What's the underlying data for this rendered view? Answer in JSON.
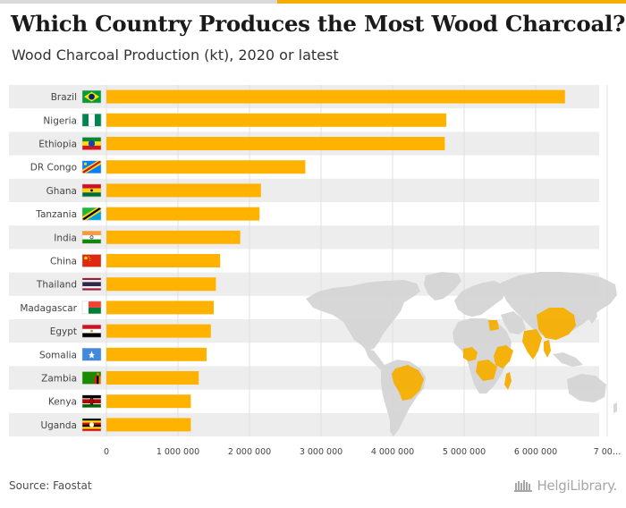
{
  "header": {
    "title": "Which Country Produces the Most Wood Charcoal?",
    "subtitle": "Wood Charcoal Production (kt), 2020 or latest"
  },
  "footer": {
    "source": "Source: Faostat",
    "logo_text": "HelgiLibrary."
  },
  "colors": {
    "bar": "#ffb300",
    "band": "#ededed",
    "map_land": "#d5d5d5",
    "map_highlight": "#f5ad00"
  },
  "chart_data": {
    "type": "bar",
    "orientation": "horizontal",
    "title": "Which Country Produces the Most Wood Charcoal?",
    "subtitle": "Wood Charcoal Production (kt), 2020 or latest",
    "categories": [
      "Brazil",
      "Nigeria",
      "Ethiopia",
      "DR Congo",
      "Ghana",
      "Tanzania",
      "India",
      "China",
      "Thailand",
      "Madagascar",
      "Egypt",
      "Somalia",
      "Zambia",
      "Kenya",
      "Uganda"
    ],
    "values": [
      6410000,
      4750000,
      4730000,
      2780000,
      2160000,
      2140000,
      1870000,
      1590000,
      1530000,
      1500000,
      1460000,
      1400000,
      1290000,
      1180000,
      1180000
    ],
    "flags": [
      "brazil-flag-icon",
      "nigeria-flag-icon",
      "ethiopia-flag-icon",
      "drcongo-flag-icon",
      "ghana-flag-icon",
      "tanzania-flag-icon",
      "india-flag-icon",
      "china-flag-icon",
      "thailand-flag-icon",
      "madagascar-flag-icon",
      "egypt-flag-icon",
      "somalia-flag-icon",
      "zambia-flag-icon",
      "kenya-flag-icon",
      "uganda-flag-icon"
    ],
    "xlim": [
      0,
      7000000
    ],
    "ticks": [
      0,
      1000000,
      2000000,
      3000000,
      4000000,
      5000000,
      6000000,
      7000000
    ],
    "tick_labels": [
      "0",
      "1 000 000",
      "2 000 000",
      "3 000 000",
      "4 000 000",
      "5 000 000",
      "6 000 000",
      "7 00…"
    ],
    "grid": true,
    "xlabel": "",
    "ylabel": ""
  }
}
